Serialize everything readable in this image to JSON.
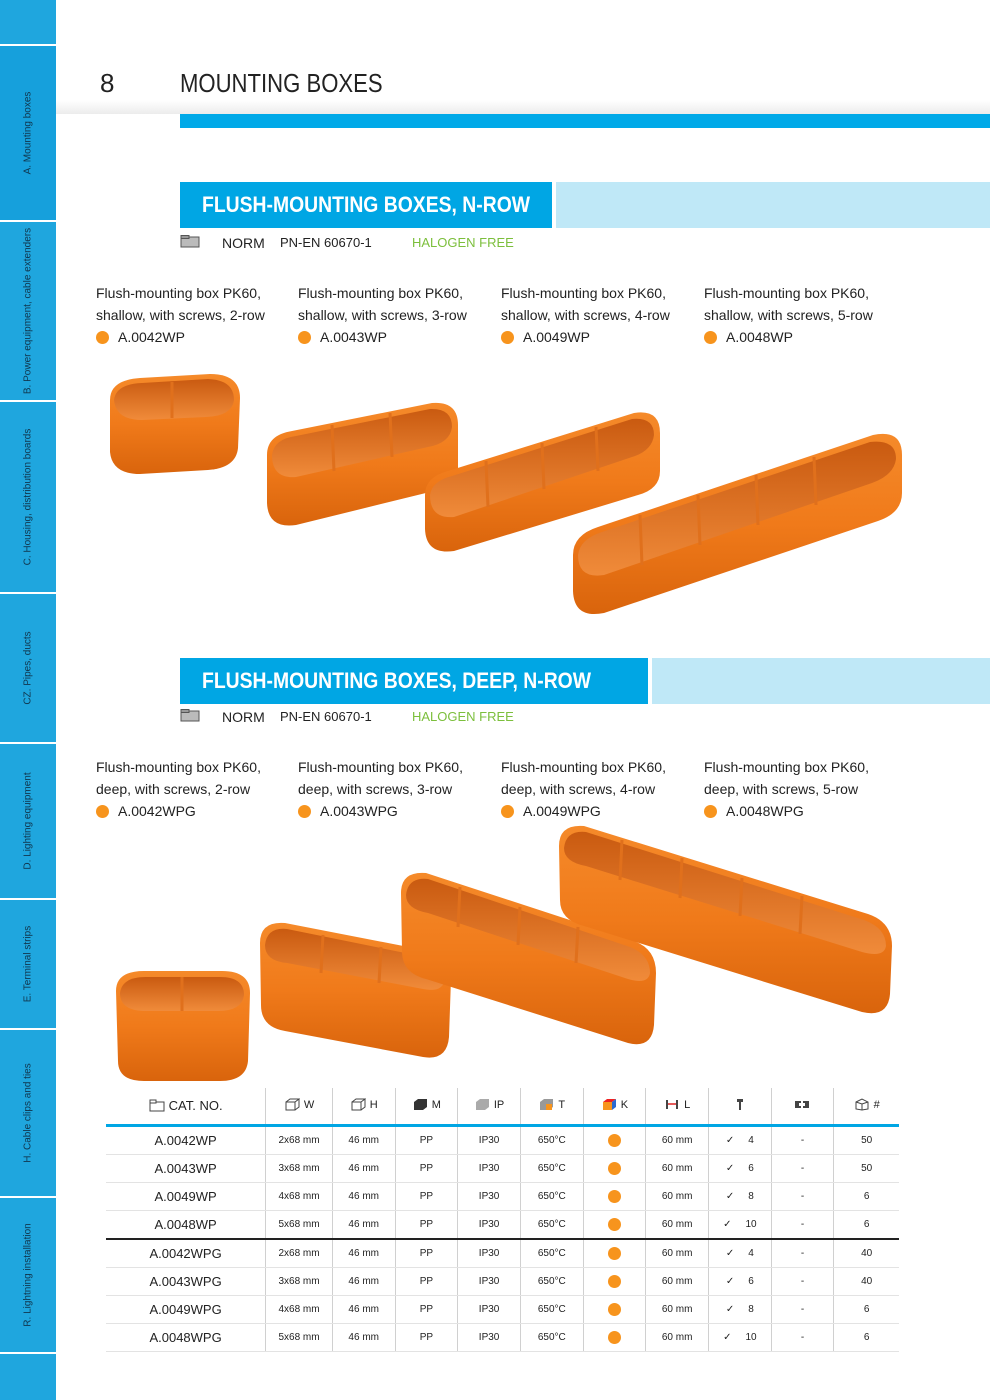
{
  "sidebar": {
    "tabs": [
      {
        "label": "A. Mounting boxes"
      },
      {
        "label": "B. Power equipment, cable extenders"
      },
      {
        "label": "C. Housing, distribution boards"
      },
      {
        "label": "CZ. Pipes, ducts"
      },
      {
        "label": "D. Lighting equipment"
      },
      {
        "label": "E. Terminal strips"
      },
      {
        "label": "H. Cable clips and ties"
      },
      {
        "label": "R. Lightning installation"
      }
    ]
  },
  "header": {
    "page_number": "8",
    "title": "MOUNTING BOXES"
  },
  "sections": [
    {
      "title": "FLUSH-MOUNTING BOXES, N-ROW",
      "norm_label": "NORM",
      "standard": "PN-EN 60670-1",
      "halogen": "HALOGEN FREE",
      "products": [
        {
          "desc": "Flush-mounting box PK60,\nshallow, with screws, 2-row",
          "code": "A.0042WP"
        },
        {
          "desc": "Flush-mounting box PK60,\nshallow, with screws, 3-row",
          "code": "A.0043WP"
        },
        {
          "desc": "Flush-mounting box PK60,\nshallow, with screws, 4-row",
          "code": "A.0049WP"
        },
        {
          "desc": "Flush-mounting box PK60,\nshallow, with screws, 5-row",
          "code": "A.0048WP"
        }
      ]
    },
    {
      "title": "FLUSH-MOUNTING BOXES, DEEP, N-ROW",
      "norm_label": "NORM",
      "standard": "PN-EN 60670-1",
      "halogen": "HALOGEN FREE",
      "products": [
        {
          "desc": "Flush-mounting box PK60,\ndeep, with screws, 2-row",
          "code": "A.0042WPG"
        },
        {
          "desc": "Flush-mounting box PK60,\ndeep, with screws, 3-row",
          "code": "A.0043WPG"
        },
        {
          "desc": "Flush-mounting box PK60,\ndeep, with screws, 4-row",
          "code": "A.0049WPG"
        },
        {
          "desc": "Flush-mounting box PK60,\ndeep, with screws, 5-row",
          "code": "A.0048WPG"
        }
      ]
    }
  ],
  "table": {
    "headers": {
      "cat": "CAT. NO.",
      "w": "W",
      "h": "H",
      "m": "M",
      "ip": "IP",
      "t": "T",
      "k": "K",
      "l": "L",
      "hash": "#"
    },
    "rows": [
      {
        "cat": "A.0042WP",
        "w": "2x68 mm",
        "h": "46 mm",
        "m": "PP",
        "ip": "IP30",
        "t": "650°C",
        "l": "60 mm",
        "screws": "4",
        "clip": "-",
        "qty": "50"
      },
      {
        "cat": "A.0043WP",
        "w": "3x68 mm",
        "h": "46 mm",
        "m": "PP",
        "ip": "IP30",
        "t": "650°C",
        "l": "60 mm",
        "screws": "6",
        "clip": "-",
        "qty": "50"
      },
      {
        "cat": "A.0049WP",
        "w": "4x68 mm",
        "h": "46 mm",
        "m": "PP",
        "ip": "IP30",
        "t": "650°C",
        "l": "60 mm",
        "screws": "8",
        "clip": "-",
        "qty": "6"
      },
      {
        "cat": "A.0048WP",
        "w": "5x68 mm",
        "h": "46 mm",
        "m": "PP",
        "ip": "IP30",
        "t": "650°C",
        "l": "60 mm",
        "screws": "10",
        "clip": "-",
        "qty": "6"
      },
      {
        "cat": "A.0042WPG",
        "w": "2x68 mm",
        "h": "46 mm",
        "m": "PP",
        "ip": "IP30",
        "t": "650°C",
        "l": "60 mm",
        "screws": "4",
        "clip": "-",
        "qty": "40"
      },
      {
        "cat": "A.0043WPG",
        "w": "3x68 mm",
        "h": "46 mm",
        "m": "PP",
        "ip": "IP30",
        "t": "650°C",
        "l": "60 mm",
        "screws": "6",
        "clip": "-",
        "qty": "40"
      },
      {
        "cat": "A.0049WPG",
        "w": "4x68 mm",
        "h": "46 mm",
        "m": "PP",
        "ip": "IP30",
        "t": "650°C",
        "l": "60 mm",
        "screws": "8",
        "clip": "-",
        "qty": "6"
      },
      {
        "cat": "A.0048WPG",
        "w": "5x68 mm",
        "h": "46 mm",
        "m": "PP",
        "ip": "IP30",
        "t": "650°C",
        "l": "60 mm",
        "screws": "10",
        "clip": "-",
        "qty": "6"
      }
    ]
  },
  "colors": {
    "accent_blue": "#00a6e4",
    "light_blue": "#bfe8f7",
    "orange": "#f7941d",
    "halogen_green": "#7cbf3c"
  }
}
